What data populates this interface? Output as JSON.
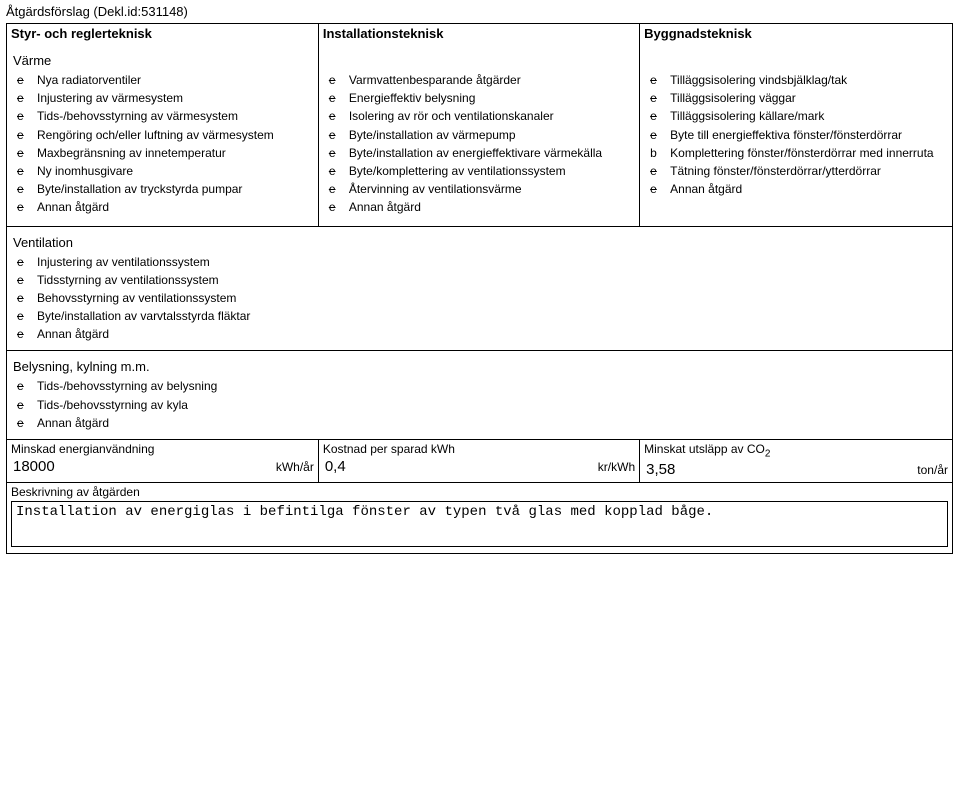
{
  "header": "Åtgärdsförslag (Dekl.id:531148)",
  "columns": {
    "c1": "Styr- och reglerteknisk",
    "c2": "Installationsteknisk",
    "c3": "Byggnadsteknisk"
  },
  "varme": {
    "title": "Värme",
    "items": [
      "Nya radiatorventiler",
      "Injustering av värmesystem",
      "Tids-/behovsstyrning av värmesystem",
      "Rengöring och/eller luftning av värmesystem",
      "Maxbegränsning av innetemperatur",
      "Ny inomhusgivare",
      "Byte/installation av tryckstyrda pumpar",
      "Annan åtgärd"
    ]
  },
  "install": {
    "items": [
      "Varmvattenbesparande åtgärder",
      "Energieffektiv belysning",
      "Isolering av rör och ventilationskanaler",
      "Byte/installation av värmepump",
      "Byte/installation av energieffektivare värmekälla",
      "Byte/komplettering av ventilationssystem",
      "Återvinning av ventilationsvärme",
      "Annan åtgärd"
    ]
  },
  "bygg": {
    "items": [
      "Tilläggsisolering vindsbjälklag/tak",
      "Tilläggsisolering väggar",
      "Tilläggsisolering källare/mark",
      "Byte till energieffektiva fönster/fönsterdörrar",
      "Komplettering fönster/fönsterdörrar med innerruta",
      "Tätning fönster/fönsterdörrar/ytterdörrar",
      "Annan åtgärd"
    ],
    "selected_index": 4
  },
  "ventilation": {
    "title": "Ventilation",
    "items": [
      "Injustering av ventilationssystem",
      "Tidsstyrning av ventilationssystem",
      "Behovsstyrning av ventilationssystem",
      "Byte/installation av varvtalsstyrda fläktar",
      "Annan åtgärd"
    ]
  },
  "belysning": {
    "title": "Belysning, kylning m.m.",
    "items": [
      "Tids-/behovsstyrning av belysning",
      "Tids-/behovsstyrning av kyla",
      "Annan åtgärd"
    ]
  },
  "bottom": {
    "energy": {
      "label": "Minskad energianvändning",
      "value": "18000",
      "unit": "kWh/år"
    },
    "cost": {
      "label": "Kostnad per sparad kWh",
      "value": "0,4",
      "unit": "kr/kWh"
    },
    "co2": {
      "label_pre": "Minskat utsläpp av CO",
      "label_sub": "2",
      "value": "3,58",
      "unit": "ton/år"
    }
  },
  "desc": {
    "label": "Beskrivning av åtgärden",
    "text": "Installation av energiglas i befintilga fönster av typen två glas med kopplad båge."
  },
  "marker_unsel": "e",
  "marker_sel": "b"
}
